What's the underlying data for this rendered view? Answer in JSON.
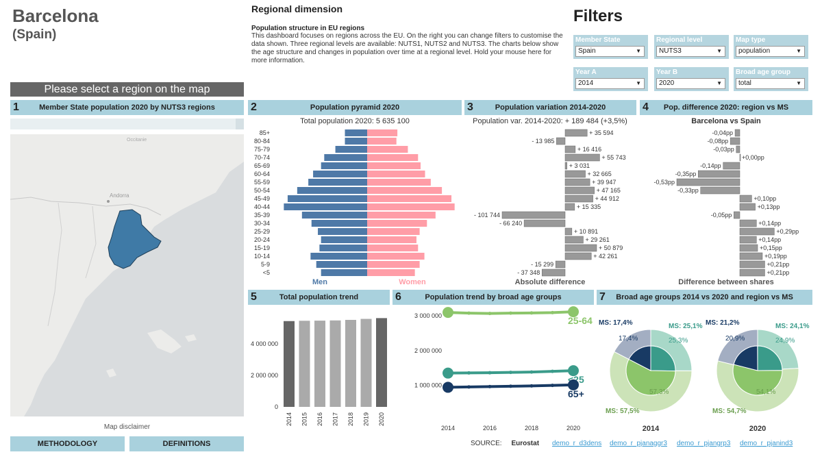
{
  "header": {
    "title": "Barcelona",
    "subtitle": "(Spain)"
  },
  "intro": {
    "title": "Regional dimension",
    "subtitle": "Population structure in EU regions",
    "description": "This dashboard focuses on regions across the EU. On the right you can change filters to customise the data shown. Three regional levels are available: NUTS1, NUTS2 and NUTS3. The charts below show the age structure and changes in population over time at a regional level. Hold your mouse here for more information."
  },
  "filters": {
    "title": "Filters",
    "items": [
      {
        "label": "Member State",
        "value": "Spain"
      },
      {
        "label": "Regional level",
        "value": "NUTS3"
      },
      {
        "label": "Map type",
        "value": "population"
      },
      {
        "label": "Year A",
        "value": "2014"
      },
      {
        "label": "Year B",
        "value": "2020"
      },
      {
        "label": "Broad age group",
        "value": "total"
      }
    ]
  },
  "select_banner": "Please select a region on the map",
  "sections": {
    "s1": {
      "num": "1",
      "title": "Member State population 2020 by NUTS3 regions"
    },
    "s2": {
      "num": "2",
      "title": "Population pyramid 2020"
    },
    "s3": {
      "num": "3",
      "title": "Population variation 2014-2020"
    },
    "s4": {
      "num": "4",
      "title": "Pop. difference 2020: region vs MS"
    },
    "s5": {
      "num": "5",
      "title": "Total population trend"
    },
    "s6": {
      "num": "6",
      "title": "Population trend by broad age groups"
    },
    "s7": {
      "num": "7",
      "title": "Broad age groups 2014 vs 2020 and region vs MS"
    }
  },
  "map": {
    "labels": {
      "andorra": "Andorra",
      "occitanie": "Occitanie"
    },
    "disclaimer": "Map disclaimer"
  },
  "buttons": {
    "methodology": "METHODOLOGY",
    "definitions": "DEFINITIONS"
  },
  "source": {
    "label": "SOURCE:",
    "org": "Eurostat",
    "links": [
      "demo_r_d3dens",
      "demo_r_pjanaggr3",
      "demo_r_pjangrp3",
      "demo_r_pjanind3"
    ]
  },
  "colors": {
    "men": "#4e79a7",
    "women": "#ff9da7",
    "header": "#a9d1dd",
    "bar_grey": "#999999",
    "map_region": "#3f7aa6",
    "green_light": "#8cc56a",
    "teal": "#3a9b8a",
    "navy": "#183a64"
  },
  "chart_data": [
    {
      "type": "bar",
      "id": "pyramid",
      "title": "Total population 2020: 5 635 100",
      "categories": [
        "85+",
        "80-84",
        "75-79",
        "70-74",
        "65-69",
        "60-64",
        "55-59",
        "50-54",
        "45-49",
        "40-44",
        "35-39",
        "30-34",
        "25-29",
        "20-24",
        "15-19",
        "10-14",
        "5-9",
        "<5"
      ],
      "series": [
        {
          "name": "Men",
          "values": [
            70,
            70,
            100,
            135,
            145,
            170,
            185,
            220,
            250,
            262,
            205,
            175,
            155,
            145,
            150,
            178,
            160,
            145
          ]
        },
        {
          "name": "Women",
          "values": [
            95,
            92,
            128,
            160,
            168,
            182,
            200,
            235,
            265,
            275,
            215,
            188,
            165,
            155,
            160,
            180,
            165,
            150
          ]
        }
      ],
      "xlabel": "Men",
      "ylabel": "Women"
    },
    {
      "type": "bar",
      "id": "variation",
      "title": "Population var. 2014-2020: + 189 484 (+3,5%)",
      "categories": [
        "85+",
        "80-84",
        "75-79",
        "70-74",
        "65-69",
        "60-64",
        "55-59",
        "50-54",
        "45-49",
        "40-44",
        "35-39",
        "30-34",
        "25-29",
        "20-24",
        "15-19",
        "10-14",
        "5-9",
        "<5"
      ],
      "values": [
        35594,
        -13985,
        16416,
        55743,
        3031,
        32665,
        39947,
        47165,
        44912,
        15335,
        -101744,
        -66240,
        10891,
        29261,
        50879,
        42261,
        -15299,
        -37348
      ],
      "labels": [
        "+ 35 594",
        "- 13 985",
        "+ 16 416",
        "+ 55 743",
        "+ 3 031",
        "+ 32 665",
        "+ 39 947",
        "+ 47 165",
        "+ 44 912",
        "+ 15 335",
        "- 101 744",
        "- 66 240",
        "+ 10 891",
        "+ 29 261",
        "+ 50 879",
        "+ 42 261",
        "- 15 299",
        "- 37 348"
      ],
      "xlabel": "Absolute difference"
    },
    {
      "type": "bar",
      "id": "share_diff",
      "title": "Barcelona vs Spain",
      "categories": [
        "85+",
        "80-84",
        "75-79",
        "70-74",
        "65-69",
        "60-64",
        "55-59",
        "50-54",
        "45-49",
        "40-44",
        "35-39",
        "30-34",
        "25-29",
        "20-24",
        "15-19",
        "10-14",
        "5-9",
        "<5"
      ],
      "values": [
        -0.04,
        -0.08,
        -0.03,
        0.0,
        -0.14,
        -0.35,
        -0.53,
        -0.33,
        0.1,
        0.13,
        -0.05,
        0.14,
        0.29,
        0.14,
        0.15,
        0.19,
        0.21,
        0.21
      ],
      "labels": [
        "-0,04pp",
        "-0,08pp",
        "-0,03pp",
        "+0,00pp",
        "-0,14pp",
        "-0,35pp",
        "-0,53pp",
        "-0,33pp",
        "+0,10pp",
        "+0,13pp",
        "-0,05pp",
        "+0,14pp",
        "+0,29pp",
        "+0,14pp",
        "+0,15pp",
        "+0,19pp",
        "+0,21pp",
        "+0,21pp"
      ],
      "xlabel": "Difference between shares"
    },
    {
      "type": "bar",
      "id": "total_trend",
      "categories": [
        "2014",
        "2015",
        "2016",
        "2017",
        "2018",
        "2019",
        "2020"
      ],
      "values": [
        5446000,
        5466000,
        5474000,
        5488000,
        5522000,
        5586000,
        5635100
      ],
      "yticks": [
        "0",
        "2 000 000",
        "4 000 000"
      ],
      "ylim": [
        0,
        6000000
      ]
    },
    {
      "type": "line",
      "id": "age_trend",
      "x": [
        "2014",
        "2016",
        "2018",
        "2020"
      ],
      "x_values": [
        2014,
        2015,
        2016,
        2017,
        2018,
        2019,
        2020
      ],
      "series": [
        {
          "name": "25-64",
          "values": [
            3100000,
            3080000,
            3070000,
            3080000,
            3085000,
            3095000,
            3120000
          ]
        },
        {
          "name": "<25",
          "values": [
            1350000,
            1355000,
            1360000,
            1370000,
            1380000,
            1400000,
            1420000
          ]
        },
        {
          "name": "65+",
          "values": [
            940000,
            950000,
            960000,
            970000,
            980000,
            995000,
            1010000
          ]
        }
      ],
      "yticks": [
        "1 000 000",
        "2 000 000",
        "3 000 000"
      ],
      "ylim": [
        0,
        3300000
      ]
    },
    {
      "type": "pie",
      "id": "broad_age",
      "years": [
        "2014",
        "2020"
      ],
      "pies": [
        {
          "year": "2014",
          "region": {
            "<25": 25.3,
            "25-64": 57.3,
            "65+": 17.4
          },
          "ms": {
            "<25": 25.1,
            "25-64": 57.5,
            "65+": 17.4
          },
          "labels": {
            "ms65": "MS: 17,4%",
            "ms25": "MS: 25,1%",
            "r65": "17,4%",
            "r25": "25,3%",
            "r2564": "57,3%",
            "ms2564": "MS: 57,5%"
          }
        },
        {
          "year": "2020",
          "region": {
            "<25": 24.9,
            "25-64": 54.1,
            "65+": 20.9
          },
          "ms": {
            "<25": 24.1,
            "25-64": 54.7,
            "65+": 21.2
          },
          "labels": {
            "ms65": "MS: 21,2%",
            "ms25": "MS: 24,1%",
            "r65": "20,9%",
            "r25": "24,9%",
            "r2564": "54,1%",
            "ms2564": "MS: 54,7%"
          }
        }
      ]
    }
  ]
}
